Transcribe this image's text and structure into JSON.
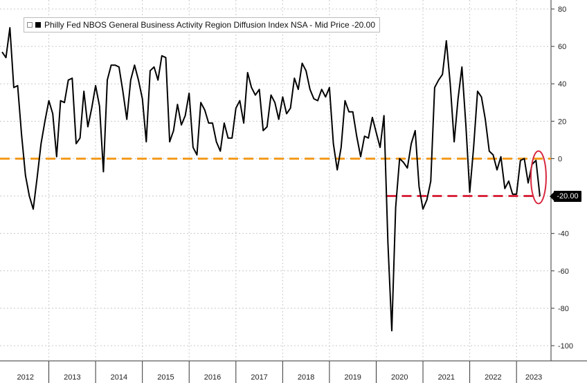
{
  "chart_data": {
    "type": "line",
    "legend": "Philly Fed NBOS General Business Activity Region Diffusion Index NSA - Mid Price -20.00",
    "last_value_label": "-20.00",
    "y_ticks": [
      "80",
      "60",
      "40",
      "20",
      "0",
      "-20",
      "-40",
      "-60",
      "-80",
      "-100"
    ],
    "ylim": [
      -100,
      80
    ],
    "years": [
      "2012",
      "2013",
      "2014",
      "2015",
      "2016",
      "2017",
      "2018",
      "2019",
      "2020",
      "2021",
      "2022",
      "2023"
    ],
    "x_start": "2012-01",
    "series": [
      {
        "color": "#000000",
        "values": [
          57,
          54,
          70,
          38,
          39,
          13,
          -9,
          -20,
          -27,
          -10,
          8,
          20,
          31,
          24,
          1,
          31,
          30,
          42,
          43,
          8,
          11,
          36,
          17,
          27,
          39,
          28,
          -7,
          42,
          50,
          50,
          49,
          36,
          21,
          42,
          50,
          42,
          32,
          9,
          47,
          49,
          42,
          55,
          54,
          9,
          15,
          29,
          18,
          23,
          35,
          6,
          2,
          30,
          26,
          19,
          19,
          9,
          4,
          19,
          11,
          11,
          27,
          31,
          19,
          46,
          38,
          34,
          37,
          15,
          17,
          34,
          30,
          21,
          33,
          24,
          27,
          43,
          37,
          51,
          47,
          37,
          32,
          31,
          37,
          33,
          38,
          8,
          -6,
          6,
          31,
          25,
          25,
          12,
          1,
          12,
          11,
          22,
          14,
          6,
          23,
          -45,
          -92,
          -26,
          0,
          -2,
          -5,
          8,
          15,
          -15,
          -27,
          -22,
          -12,
          38,
          42,
          45,
          63,
          40,
          9,
          32,
          49,
          18,
          -18,
          6,
          36,
          33,
          21,
          4,
          2,
          -6,
          1,
          -16,
          -12,
          -19,
          -19,
          -1,
          0,
          -13,
          -3,
          -1,
          -20
        ]
      }
    ]
  },
  "reference_lines": {
    "orange_color": "#f39c1f",
    "red_color": "#d7263d",
    "circle_color": "#d7263d"
  }
}
